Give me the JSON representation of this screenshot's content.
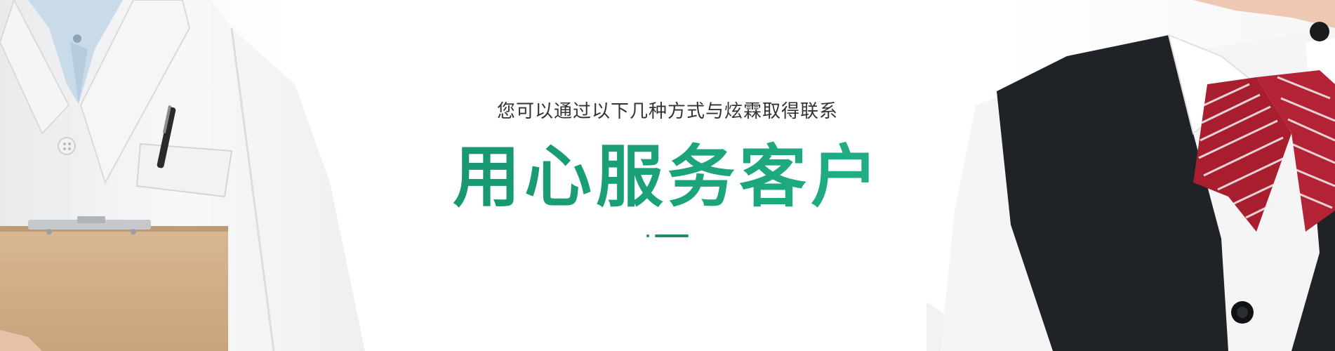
{
  "banner": {
    "subtitle": "您可以通过以下几种方式与炫霖取得联系",
    "headline": "用心服务客户"
  },
  "colors": {
    "accent_dark": "#107e5f",
    "accent_light": "#2cc7a0",
    "text_gray": "#333333"
  },
  "images": {
    "left_photo": "doctor-with-clipboard",
    "right_photo": "customer-service-agent-with-headset"
  }
}
